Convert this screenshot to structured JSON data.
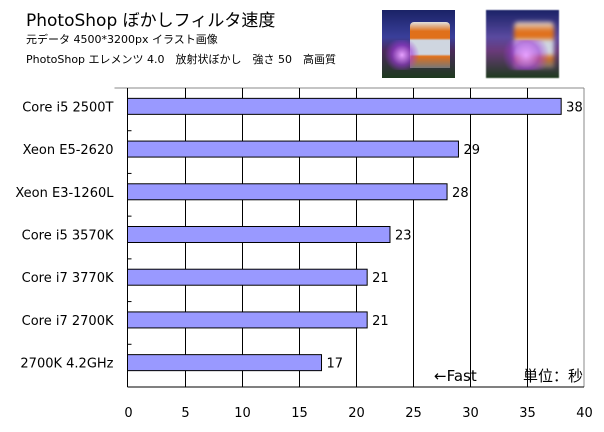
{
  "header": {
    "title": "PhotoShop ぼかしフィルタ速度",
    "line1": "元データ 4500*3200px イラスト画像",
    "line2": "PhotoShop エレメンツ 4.0　放射状ぼかし　強さ 50　高画質"
  },
  "chart_data": {
    "type": "bar",
    "orientation": "horizontal",
    "title": "PhotoShop ぼかしフィルタ速度",
    "categories": [
      "Core i5 2500T",
      "Xeon E5-2620",
      "Xeon E3-1260L",
      "Core i5 3570K",
      "Core i7 3770K",
      "Core i7 2700K",
      "2700K 4.2GHz"
    ],
    "values": [
      38,
      29,
      28,
      23,
      21,
      21,
      17
    ],
    "xlim": [
      0,
      40
    ],
    "xticks": [
      0,
      5,
      10,
      15,
      20,
      25,
      30,
      35,
      40
    ],
    "grid": true,
    "bar_color": "#9999ff",
    "annotations": {
      "fast": "←Fast",
      "unit": "単位：秒"
    }
  }
}
